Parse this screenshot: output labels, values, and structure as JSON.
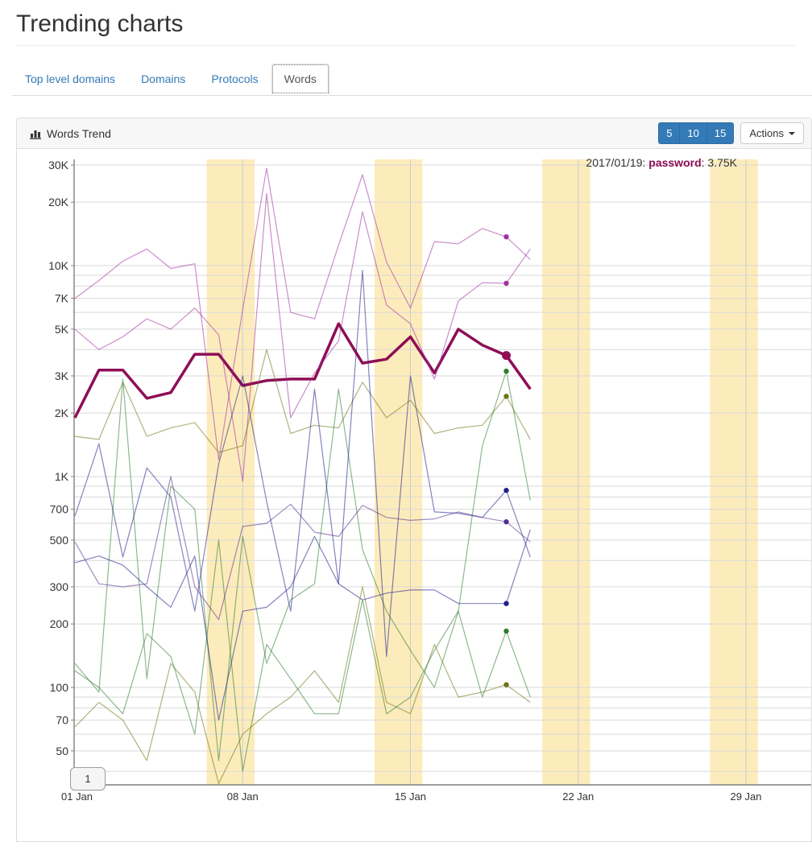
{
  "page": {
    "title": "Trending charts"
  },
  "tabs": [
    {
      "id": "top-level-domains",
      "label": "Top level domains",
      "active": false
    },
    {
      "id": "domains",
      "label": "Domains",
      "active": false
    },
    {
      "id": "protocols",
      "label": "Protocols",
      "active": false
    },
    {
      "id": "words",
      "label": "Words",
      "active": true
    }
  ],
  "panel": {
    "title": "Words Trend",
    "icon": "bar-chart-icon",
    "range_buttons": [
      "5",
      "10",
      "15"
    ],
    "actions_label": "Actions"
  },
  "tooltip": {
    "date_label": "2017/01/19",
    "series": "password",
    "value_label": "3.75K"
  },
  "pagination": {
    "label": "1"
  },
  "chart_data": {
    "type": "line",
    "title": "Words Trend",
    "x_axis": {
      "month": "Jan 2017",
      "tick_labels": [
        "01 Jan",
        "08 Jan",
        "15 Jan",
        "22 Jan",
        "29 Jan"
      ],
      "tick_days": [
        1,
        8,
        15,
        22,
        29
      ],
      "domain_days": [
        1,
        32
      ]
    },
    "y_axis": {
      "scale": "log",
      "range": [
        40,
        31000
      ],
      "ticks": [
        {
          "v": 30000,
          "label": "30K"
        },
        {
          "v": 20000,
          "label": "20K"
        },
        {
          "v": 10000,
          "label": "10K"
        },
        {
          "v": 7000,
          "label": "7K"
        },
        {
          "v": 5000,
          "label": "5K"
        },
        {
          "v": 3000,
          "label": "3K"
        },
        {
          "v": 2000,
          "label": "2K"
        },
        {
          "v": 1000,
          "label": "1K"
        },
        {
          "v": 700,
          "label": "700"
        },
        {
          "v": 500,
          "label": "500"
        },
        {
          "v": 300,
          "label": "300"
        },
        {
          "v": 200,
          "label": "200"
        },
        {
          "v": 100,
          "label": "100"
        },
        {
          "v": 70,
          "label": "70"
        },
        {
          "v": 50,
          "label": "50"
        }
      ]
    },
    "weekend_bands_days": [
      [
        6.5,
        8.5
      ],
      [
        13.5,
        15.5
      ],
      [
        20.5,
        22.5
      ],
      [
        27.5,
        29.5
      ]
    ],
    "band_color": "#fdecbb",
    "grid_color": "#d9d9d9",
    "axis_color": "#7f7f7f",
    "highlight": {
      "day": 19,
      "series": "password",
      "value": 3750
    },
    "days": [
      1,
      2,
      3,
      4,
      5,
      6,
      7,
      8,
      9,
      10,
      11,
      12,
      13,
      14,
      15,
      16,
      17,
      18,
      19,
      20
    ],
    "series": [
      {
        "id": "password",
        "label": "password",
        "color": "#8e0e56",
        "width": 3.5,
        "highlighted": true,
        "values": [
          1900,
          3200,
          3200,
          2350,
          2500,
          3800,
          3800,
          2700,
          2850,
          2900,
          2900,
          5300,
          3450,
          3600,
          4600,
          3100,
          5000,
          4200,
          3750,
          2600
        ]
      },
      {
        "id": "series-2",
        "label": "",
        "color": "#a032a0",
        "width": 1.2,
        "highlighted": false,
        "values": [
          7000,
          8500,
          10500,
          12000,
          9700,
          10200,
          1200,
          6200,
          29000,
          6000,
          5600,
          12500,
          27000,
          10400,
          6300,
          13000,
          12700,
          15000,
          13700,
          10700
        ]
      },
      {
        "id": "series-3",
        "label": "",
        "color": "#a032a0",
        "width": 1.2,
        "highlighted": false,
        "values": [
          5000,
          4000,
          4600,
          5600,
          5000,
          6300,
          4700,
          950,
          22000,
          1900,
          3100,
          4400,
          18000,
          6500,
          5300,
          2900,
          6800,
          8300,
          8250,
          12000
        ]
      },
      {
        "id": "series-4",
        "label": "",
        "color": "#6f7413",
        "width": 1.2,
        "highlighted": false,
        "values": [
          1550,
          1500,
          2800,
          1550,
          1700,
          1800,
          1300,
          1400,
          4000,
          1600,
          1750,
          1700,
          2800,
          1900,
          2300,
          1600,
          1700,
          1750,
          2400,
          1500
        ]
      },
      {
        "id": "series-5",
        "label": "",
        "color": "#6f7413",
        "width": 1.2,
        "highlighted": false,
        "values": [
          65,
          85,
          70,
          45,
          130,
          95,
          35,
          60,
          75,
          90,
          120,
          85,
          300,
          85,
          75,
          160,
          90,
          95,
          103,
          85
        ]
      },
      {
        "id": "series-6",
        "label": "",
        "color": "#2f7d32",
        "width": 1.2,
        "highlighted": false,
        "values": [
          130,
          95,
          2900,
          110,
          900,
          700,
          45,
          520,
          130,
          260,
          310,
          2600,
          450,
          230,
          150,
          100,
          230,
          1400,
          3160,
          770
        ]
      },
      {
        "id": "series-7",
        "label": "",
        "color": "#2f7d32",
        "width": 1.2,
        "highlighted": false,
        "values": [
          120,
          100,
          75,
          180,
          140,
          60,
          500,
          40,
          160,
          110,
          75,
          75,
          260,
          75,
          90,
          150,
          230,
          90,
          185,
          90
        ]
      },
      {
        "id": "series-8",
        "label": "",
        "color": "#1f1f8b",
        "width": 1.2,
        "highlighted": false,
        "values": [
          650,
          1430,
          415,
          1100,
          800,
          230,
          1150,
          3000,
          760,
          230,
          2600,
          310,
          9500,
          140,
          3000,
          680,
          670,
          640,
          860,
          415
        ]
      },
      {
        "id": "series-9",
        "label": "",
        "color": "#1f1f8b",
        "width": 1.2,
        "highlighted": false,
        "values": [
          390,
          420,
          380,
          300,
          240,
          420,
          70,
          230,
          240,
          300,
          520,
          310,
          260,
          280,
          290,
          290,
          250,
          250,
          250,
          560
        ]
      },
      {
        "id": "series-10",
        "label": "",
        "color": "#53308f",
        "width": 1.2,
        "highlighted": false,
        "values": [
          490,
          310,
          300,
          310,
          1000,
          300,
          210,
          580,
          600,
          740,
          545,
          520,
          730,
          640,
          620,
          630,
          680,
          640,
          610,
          490
        ]
      }
    ]
  }
}
